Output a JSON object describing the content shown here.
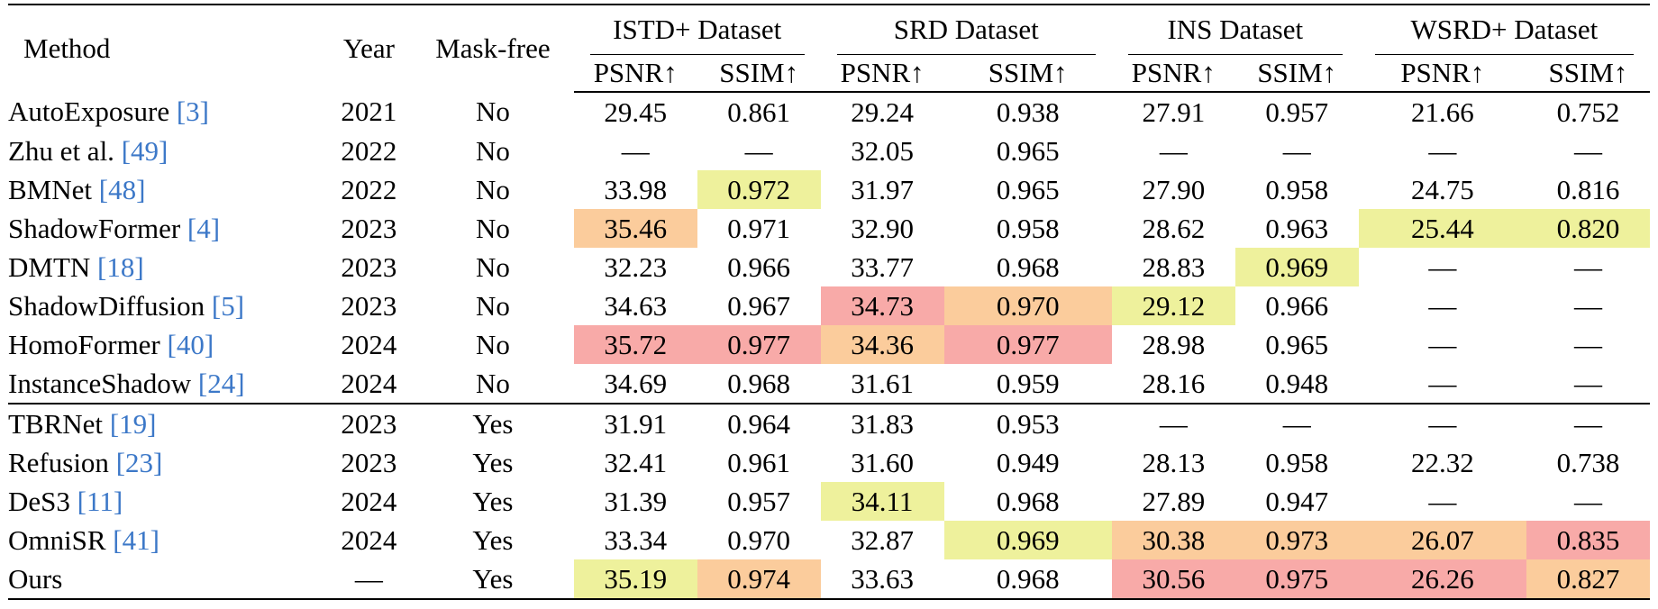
{
  "header": {
    "method": "Method",
    "year": "Year",
    "mask_free": "Mask-free",
    "datasets": [
      "ISTD+ Dataset",
      "SRD Dataset",
      "INS Dataset",
      "WSRD+ Dataset"
    ],
    "psnr": "PSNR↑",
    "ssim": "SSIM↑"
  },
  "highlight_colors": {
    "red": "#f8aaa8",
    "orange": "#fbcc9c",
    "yellow": "#eef19c",
    "citation": "#3c78c8"
  },
  "rows": [
    {
      "method": "AutoExposure ",
      "cite": "[3]",
      "year": "2021",
      "mask_free": "No",
      "vals": [
        "29.45",
        "0.861",
        "29.24",
        "0.938",
        "27.91",
        "0.957",
        "21.66",
        "0.752"
      ],
      "hl": [
        "",
        "",
        "",
        "",
        "",
        "",
        "",
        ""
      ]
    },
    {
      "method": "Zhu et al. ",
      "cite": "[49]",
      "year": "2022",
      "mask_free": "No",
      "vals": [
        "—",
        "—",
        "32.05",
        "0.965",
        "—",
        "—",
        "—",
        "—"
      ],
      "hl": [
        "",
        "",
        "",
        "",
        "",
        "",
        "",
        ""
      ]
    },
    {
      "method": "BMNet ",
      "cite": "[48]",
      "year": "2022",
      "mask_free": "No",
      "vals": [
        "33.98",
        "0.972",
        "31.97",
        "0.965",
        "27.90",
        "0.958",
        "24.75",
        "0.816"
      ],
      "hl": [
        "",
        "yellow",
        "",
        "",
        "",
        "",
        "",
        ""
      ]
    },
    {
      "method": "ShadowFormer ",
      "cite": "[4]",
      "year": "2023",
      "mask_free": "No",
      "vals": [
        "35.46",
        "0.971",
        "32.90",
        "0.958",
        "28.62",
        "0.963",
        "25.44",
        "0.820"
      ],
      "hl": [
        "orange",
        "",
        "",
        "",
        "",
        "",
        "yellow",
        "yellow"
      ]
    },
    {
      "method": "DMTN ",
      "cite": "[18]",
      "year": "2023",
      "mask_free": "No",
      "vals": [
        "32.23",
        "0.966",
        "33.77",
        "0.968",
        "28.83",
        "0.969",
        "—",
        "—"
      ],
      "hl": [
        "",
        "",
        "",
        "",
        "",
        "yellow",
        "",
        ""
      ]
    },
    {
      "method": "ShadowDiffusion ",
      "cite": "[5]",
      "year": "2023",
      "mask_free": "No",
      "vals": [
        "34.63",
        "0.967",
        "34.73",
        "0.970",
        "29.12",
        "0.966",
        "—",
        "—"
      ],
      "hl": [
        "",
        "",
        "red",
        "orange",
        "yellow",
        "",
        "",
        ""
      ]
    },
    {
      "method": "HomoFormer ",
      "cite": "[40]",
      "year": "2024",
      "mask_free": "No",
      "vals": [
        "35.72",
        "0.977",
        "34.36",
        "0.977",
        "28.98",
        "0.965",
        "—",
        "—"
      ],
      "hl": [
        "red",
        "red",
        "orange",
        "red",
        "",
        "",
        "",
        ""
      ]
    },
    {
      "method": "InstanceShadow ",
      "cite": "[24]",
      "year": "2024",
      "mask_free": "No",
      "vals": [
        "34.69",
        "0.968",
        "31.61",
        "0.959",
        "28.16",
        "0.948",
        "—",
        "—"
      ],
      "hl": [
        "",
        "",
        "",
        "",
        "",
        "",
        "",
        ""
      ]
    },
    {
      "method": "TBRNet ",
      "cite": "[19]",
      "year": "2023",
      "mask_free": "Yes",
      "vals": [
        "31.91",
        "0.964",
        "31.83",
        "0.953",
        "—",
        "—",
        "—",
        "—"
      ],
      "hl": [
        "",
        "",
        "",
        "",
        "",
        "",
        "",
        ""
      ]
    },
    {
      "method": "Refusion ",
      "cite": "[23]",
      "year": "2023",
      "mask_free": "Yes",
      "vals": [
        "32.41",
        "0.961",
        "31.60",
        "0.949",
        "28.13",
        "0.958",
        "22.32",
        "0.738"
      ],
      "hl": [
        "",
        "",
        "",
        "",
        "",
        "",
        "",
        ""
      ]
    },
    {
      "method": "DeS3 ",
      "cite": "[11]",
      "year": "2024",
      "mask_free": "Yes",
      "vals": [
        "31.39",
        "0.957",
        "34.11",
        "0.968",
        "27.89",
        "0.947",
        "—",
        "—"
      ],
      "hl": [
        "",
        "",
        "yellow",
        "",
        "",
        "",
        "",
        ""
      ]
    },
    {
      "method": "OmniSR ",
      "cite": "[41]",
      "year": "2024",
      "mask_free": "Yes",
      "vals": [
        "33.34",
        "0.970",
        "32.87",
        "0.969",
        "30.38",
        "0.973",
        "26.07",
        "0.835"
      ],
      "hl": [
        "",
        "",
        "",
        "yellow",
        "orange",
        "orange",
        "orange",
        "red"
      ]
    },
    {
      "method": "Ours",
      "cite": "",
      "year": "—",
      "mask_free": "Yes",
      "vals": [
        "35.19",
        "0.974",
        "33.63",
        "0.968",
        "30.56",
        "0.975",
        "26.26",
        "0.827"
      ],
      "hl": [
        "yellow",
        "orange",
        "",
        "",
        "red",
        "red",
        "red",
        "orange"
      ]
    }
  ]
}
